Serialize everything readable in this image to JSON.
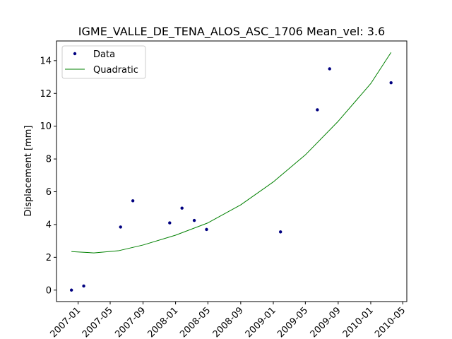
{
  "chart_data": {
    "type": "scatter",
    "title": "IGME_VALLE_DE_TENA_ALOS_ASC_1706     Mean_vel: 3.6",
    "xlabel": "",
    "ylabel": "Displacement [mm]",
    "x_type": "date",
    "xlim": [
      "2006-10-12",
      "2010-05-16"
    ],
    "ylim": [
      -0.7,
      15.2
    ],
    "x_ticks": [
      {
        "date": "2007-01-01",
        "label": "2007-01"
      },
      {
        "date": "2007-05-01",
        "label": "2007-05"
      },
      {
        "date": "2007-09-01",
        "label": "2007-09"
      },
      {
        "date": "2008-01-01",
        "label": "2008-01"
      },
      {
        "date": "2008-05-01",
        "label": "2008-05"
      },
      {
        "date": "2008-09-01",
        "label": "2008-09"
      },
      {
        "date": "2009-01-01",
        "label": "2009-01"
      },
      {
        "date": "2009-05-01",
        "label": "2009-05"
      },
      {
        "date": "2009-09-01",
        "label": "2009-09"
      },
      {
        "date": "2010-01-01",
        "label": "2010-01"
      },
      {
        "date": "2010-05-01",
        "label": "2010-05"
      }
    ],
    "y_ticks": [
      {
        "value": 0,
        "label": "0"
      },
      {
        "value": 2,
        "label": "2"
      },
      {
        "value": 4,
        "label": "4"
      },
      {
        "value": 6,
        "label": "6"
      },
      {
        "value": 8,
        "label": "8"
      },
      {
        "value": 10,
        "label": "10"
      },
      {
        "value": 12,
        "label": "12"
      },
      {
        "value": 14,
        "label": "14"
      }
    ],
    "grid": false,
    "legend_position": "top-left",
    "series": [
      {
        "name": "Data",
        "kind": "points",
        "color": "#000080",
        "points": [
          {
            "x": "2006-12-07",
            "y": 0.0
          },
          {
            "x": "2007-01-22",
            "y": 0.25
          },
          {
            "x": "2007-06-09",
            "y": 3.85
          },
          {
            "x": "2007-07-25",
            "y": 5.45
          },
          {
            "x": "2007-12-10",
            "y": 4.1
          },
          {
            "x": "2008-01-25",
            "y": 5.0
          },
          {
            "x": "2008-03-11",
            "y": 4.25
          },
          {
            "x": "2008-04-26",
            "y": 3.7
          },
          {
            "x": "2009-01-28",
            "y": 3.55
          },
          {
            "x": "2009-06-15",
            "y": 11.0
          },
          {
            "x": "2009-07-31",
            "y": 13.5
          },
          {
            "x": "2010-03-18",
            "y": 12.65
          }
        ]
      },
      {
        "name": "Quadratic",
        "kind": "line",
        "color": "#008000",
        "points": [
          {
            "x": "2006-12-07",
            "y": 2.35
          },
          {
            "x": "2007-03-01",
            "y": 2.27
          },
          {
            "x": "2007-06-01",
            "y": 2.4
          },
          {
            "x": "2007-09-01",
            "y": 2.75
          },
          {
            "x": "2008-01-01",
            "y": 3.35
          },
          {
            "x": "2008-05-01",
            "y": 4.1
          },
          {
            "x": "2008-09-01",
            "y": 5.2
          },
          {
            "x": "2009-01-01",
            "y": 6.6
          },
          {
            "x": "2009-05-01",
            "y": 8.25
          },
          {
            "x": "2009-09-01",
            "y": 10.3
          },
          {
            "x": "2010-01-01",
            "y": 12.6
          },
          {
            "x": "2010-03-18",
            "y": 14.5
          }
        ]
      }
    ]
  }
}
